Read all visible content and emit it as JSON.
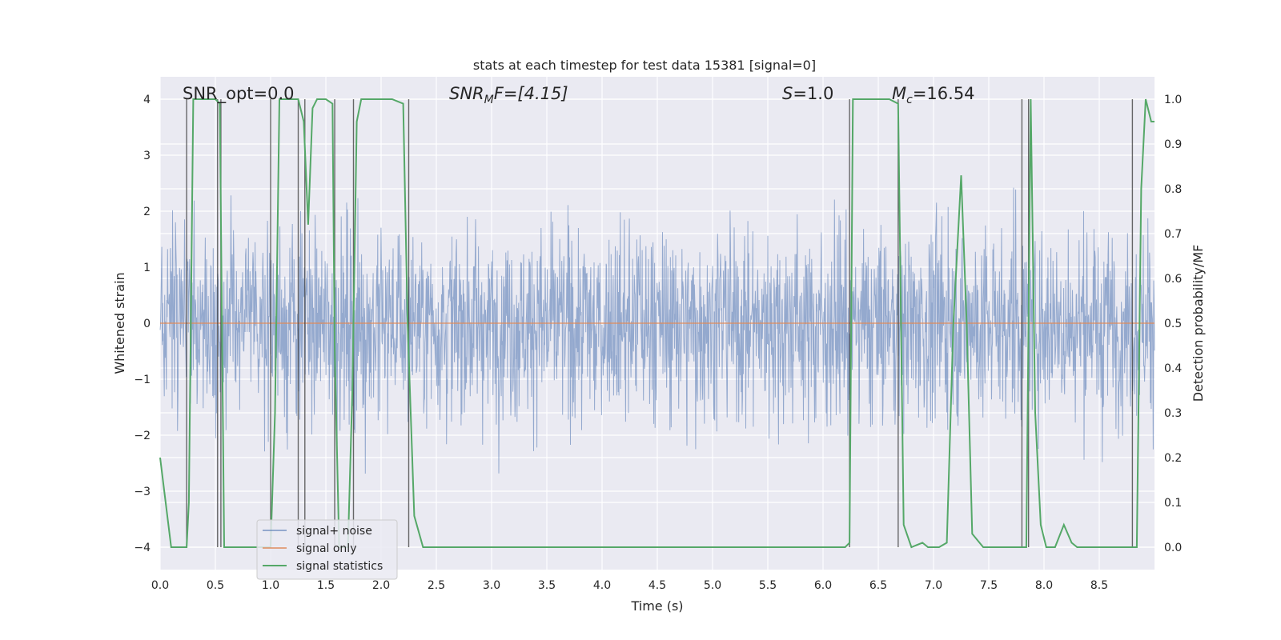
{
  "chart_data": {
    "type": "line",
    "title": "stats at each timestep for test data 15381 [signal=0]",
    "xlabel": "Time (s)",
    "ylabel": "Whitened strain",
    "ylabel_right": "Detection probability/MF",
    "xlim": [
      0.0,
      9.0
    ],
    "ylim": [
      -4.4,
      4.4
    ],
    "ylim_right": [
      -0.05,
      1.05
    ],
    "grid": true,
    "legend_position": "lower-left",
    "x_ticks": [
      "0.0",
      "0.5",
      "1.0",
      "1.5",
      "2.0",
      "2.5",
      "3.0",
      "3.5",
      "4.0",
      "4.5",
      "5.0",
      "5.5",
      "6.0",
      "6.5",
      "7.0",
      "7.5",
      "8.0",
      "8.5"
    ],
    "y_ticks": [
      "−4",
      "−3",
      "−2",
      "−1",
      "0",
      "1",
      "2",
      "3",
      "4"
    ],
    "y_ticks_right": [
      "0.0",
      "0.1",
      "0.2",
      "0.3",
      "0.4",
      "0.5",
      "0.6",
      "0.7",
      "0.8",
      "0.9",
      "1.0"
    ],
    "annotations": {
      "snr_opt": "SNR_opt=0.0",
      "snr_mf_label": "SNR",
      "snr_mf_sub": "M",
      "snr_mf_rest": "F=[4.15]",
      "s_label": "S",
      "s_rest": "=1.0",
      "mc_label": "M",
      "mc_sub": "c",
      "mc_rest": "=16.54"
    },
    "series": [
      {
        "name": "signal+ noise",
        "color": "#4c72b0",
        "kind": "noise",
        "note_visible_range": [
          -4.0,
          4.0
        ]
      },
      {
        "name": "signal only",
        "color": "#dd8452",
        "x": [
          0.0,
          9.0
        ],
        "y": [
          0.0,
          0.0
        ]
      },
      {
        "name": "signal statistics",
        "color": "#55a868",
        "axis": "right",
        "x": [
          0.0,
          0.05,
          0.1,
          0.24,
          0.26,
          0.3,
          0.4,
          0.5,
          0.54,
          0.58,
          0.62,
          0.65,
          1.0,
          1.04,
          1.08,
          1.12,
          1.2,
          1.25,
          1.3,
          1.34,
          1.38,
          1.42,
          1.5,
          1.56,
          1.58,
          1.62,
          1.65,
          1.7,
          1.74,
          1.78,
          1.82,
          1.88,
          1.95,
          2.1,
          2.2,
          2.24,
          2.3,
          2.38,
          2.5,
          6.2,
          6.24,
          6.27,
          6.3,
          6.6,
          6.68,
          6.73,
          6.8,
          6.9,
          6.95,
          7.05,
          7.12,
          7.18,
          7.25,
          7.3,
          7.35,
          7.45,
          7.8,
          7.84,
          7.88,
          7.92,
          7.97,
          8.02,
          8.1,
          8.18,
          8.25,
          8.3,
          8.5,
          8.8,
          8.84,
          8.88,
          8.92,
          8.97,
          9.0
        ],
        "y": [
          0.2,
          0.1,
          0.0,
          0.0,
          0.1,
          1.0,
          1.0,
          1.0,
          0.99,
          0.0,
          0.0,
          0.0,
          0.0,
          0.3,
          1.0,
          1.0,
          1.0,
          1.0,
          0.95,
          0.72,
          0.98,
          1.0,
          1.0,
          0.99,
          0.45,
          0.0,
          0.0,
          0.0,
          0.35,
          0.95,
          1.0,
          1.0,
          1.0,
          1.0,
          0.99,
          0.5,
          0.07,
          0.0,
          0.0,
          0.0,
          0.01,
          1.0,
          1.0,
          1.0,
          0.99,
          0.05,
          0.0,
          0.01,
          0.0,
          0.0,
          0.01,
          0.5,
          0.83,
          0.5,
          0.03,
          0.0,
          0.0,
          0.0,
          1.0,
          0.3,
          0.05,
          0.0,
          0.0,
          0.05,
          0.01,
          0.0,
          0.0,
          0.0,
          0.0,
          0.8,
          1.0,
          0.95,
          0.95
        ]
      }
    ],
    "vertical_markers": [
      0.24,
      0.52,
      0.55,
      1.0,
      1.25,
      1.31,
      1.58,
      1.75,
      2.25,
      6.24,
      6.68,
      7.8,
      7.86,
      8.8
    ]
  }
}
